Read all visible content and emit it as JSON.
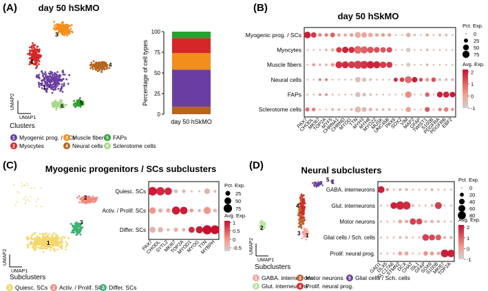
{
  "panels": {
    "A": {
      "letter": "(A)",
      "title": "day 50 hSkMO",
      "umap": {
        "ylabel": "UMAP2",
        "xlabel": "UMAP1",
        "legend_title": "Clusters",
        "cluster_labels": [
          "1",
          "2",
          "3",
          "4",
          "5",
          "6"
        ]
      },
      "legend": [
        {
          "num": "1",
          "label": "Myogenic prog. / SCs",
          "color": "#6a3ea1"
        },
        {
          "num": "2",
          "label": "Myocytes",
          "color": "#d62728"
        },
        {
          "num": "3",
          "label": "Muscle fibers",
          "color": "#f28e1c"
        },
        {
          "num": "4",
          "label": "Neural cells",
          "color": "#b5651d"
        },
        {
          "num": "5",
          "label": "FAPs",
          "color": "#2ca02c"
        },
        {
          "num": "6",
          "label": "Sclerotome cells",
          "color": "#a8d88a"
        }
      ]
    },
    "B": {
      "letter": "(B)",
      "title": "day 50 hSkMO"
    },
    "C": {
      "letter": "(C)",
      "title": "Myogenic progenitors / SCs subclusters",
      "umap": {
        "ylabel": "UMAP2",
        "xlabel": "UMAP1",
        "legend_title": "Subclusters",
        "cluster_labels": [
          "1",
          "2",
          "3"
        ]
      },
      "legend": [
        {
          "num": "1",
          "label": "Quiesc. SCs",
          "color": "#f5d76e"
        },
        {
          "num": "2",
          "label": "Activ. / Prolif. SCs",
          "color": "#f08a7e"
        },
        {
          "num": "3",
          "label": "Differ. SCs",
          "color": "#3cb371"
        }
      ]
    },
    "D": {
      "letter": "(D)",
      "title": "Neural subclusters",
      "umap": {
        "ylabel": "UMAP2",
        "xlabel": "UMAP1",
        "legend_title": "Subclusters",
        "cluster_labels": [
          "1",
          "2",
          "3",
          "4",
          "5"
        ]
      },
      "legend": [
        {
          "num": "1",
          "label": "GABA. interneurons",
          "color": "#f4a6a0"
        },
        {
          "num": "2",
          "label": "Glut. interneurons",
          "color": "#b6e3a0"
        },
        {
          "num": "3",
          "label": "Motor neurons",
          "color": "#c0622b"
        },
        {
          "num": "4",
          "label": "Prolif. neural prog.",
          "color": "#d62728"
        },
        {
          "num": "5",
          "label": "Glial cells / Sch. cells",
          "color": "#6a3ea1"
        }
      ]
    }
  },
  "chart_data": [
    {
      "type": "bar",
      "ylabel": "Percentage of cell types",
      "categories": [
        "day 50 hSkMO"
      ],
      "yticks": [
        0,
        25,
        50,
        75,
        100
      ],
      "ylim": [
        0,
        100
      ],
      "series": [
        {
          "cluster": "Neural cells",
          "color": "#b5651d",
          "values": [
            9
          ]
        },
        {
          "cluster": "Myogenic prog. / SCs",
          "color": "#6a3ea1",
          "values": [
            45
          ]
        },
        {
          "cluster": "Muscle fibers",
          "color": "#f28e1c",
          "values": [
            20
          ]
        },
        {
          "cluster": "Myocytes",
          "color": "#d62728",
          "values": [
            18
          ]
        },
        {
          "cluster": "FAPs",
          "color": "#2ca02c",
          "values": [
            8
          ]
        }
      ]
    },
    {
      "type": "dotplot",
      "rows": [
        "Myogenic prog. / SCs",
        "Myocytes",
        "Muscle fibers",
        "Neural cells",
        "FAPs",
        "Sclerotome cells"
      ],
      "genes": [
        "PAX7",
        "CHODL",
        "MKI67",
        "TOP2A",
        "MYF5",
        "CHRNA1",
        "CHRND",
        "MYOG",
        "TTN",
        "MYH3",
        "MYH8",
        "MYOZ2",
        "MUSK",
        "UNC45B",
        "PAX6",
        "SOX2",
        "VIM",
        "MAP2",
        "GFAP",
        "TWIST1",
        "S100B",
        "PDGFRA",
        "PDGFRB",
        "EBF2"
      ],
      "size_legend": {
        "title": "Pct. Exp.",
        "values": [
          0,
          25,
          50,
          75
        ]
      },
      "color_legend": {
        "title": "Avg. Exp.",
        "ticks": [
          2,
          1,
          0,
          -1
        ],
        "range": [
          -1,
          2.2
        ]
      },
      "pct": [
        [
          65,
          45,
          20,
          20,
          35,
          15,
          15,
          20,
          55,
          45,
          30,
          20,
          20,
          20,
          5,
          5,
          30,
          10,
          5,
          15,
          5,
          10,
          10,
          5
        ],
        [
          5,
          5,
          5,
          10,
          15,
          45,
          60,
          55,
          85,
          75,
          60,
          50,
          45,
          45,
          5,
          5,
          30,
          5,
          5,
          10,
          5,
          5,
          5,
          5
        ],
        [
          5,
          15,
          10,
          10,
          20,
          70,
          70,
          70,
          95,
          90,
          80,
          75,
          60,
          55,
          5,
          5,
          25,
          5,
          5,
          10,
          5,
          5,
          5,
          5
        ],
        [
          5,
          5,
          10,
          10,
          5,
          5,
          5,
          5,
          45,
          25,
          10,
          5,
          5,
          5,
          25,
          30,
          70,
          45,
          20,
          20,
          30,
          10,
          10,
          10
        ],
        [
          5,
          5,
          10,
          10,
          5,
          5,
          5,
          5,
          40,
          20,
          10,
          5,
          5,
          5,
          5,
          5,
          60,
          5,
          5,
          30,
          5,
          50,
          55,
          45
        ],
        [
          25,
          20,
          5,
          5,
          10,
          10,
          5,
          10,
          55,
          35,
          20,
          10,
          10,
          10,
          5,
          5,
          40,
          5,
          5,
          35,
          5,
          20,
          30,
          15
        ]
      ],
      "avg": [
        [
          2,
          1.6,
          0.5,
          0.6,
          1,
          0.2,
          0,
          0.2,
          -0.3,
          0,
          -0.1,
          0,
          0.2,
          0.1,
          -0.5,
          -0.5,
          -0.2,
          -0.5,
          -0.5,
          0,
          -0.5,
          -0.3,
          -0.4,
          -0.5
        ],
        [
          -0.5,
          -0.5,
          -0.4,
          -0.3,
          0,
          1.6,
          1.9,
          1.8,
          0.9,
          1,
          1.2,
          1.3,
          1.2,
          1.3,
          -0.5,
          -0.5,
          -0.8,
          -0.5,
          -0.5,
          -0.4,
          -0.5,
          -0.5,
          -0.5,
          -0.5
        ],
        [
          -0.5,
          0.2,
          -0.3,
          -0.3,
          0.2,
          1.7,
          1.8,
          1.6,
          1.5,
          1.7,
          1.9,
          1.9,
          1.6,
          1.6,
          -0.5,
          -0.5,
          -0.8,
          -0.5,
          -0.5,
          -0.4,
          -0.5,
          -0.5,
          -0.5,
          -0.5
        ],
        [
          -0.5,
          -0.5,
          0.8,
          0.9,
          -0.4,
          -0.5,
          -0.5,
          -0.5,
          -0.6,
          -0.5,
          -0.5,
          -0.5,
          -0.5,
          -0.5,
          1.8,
          1.6,
          0.9,
          2,
          1.4,
          0.3,
          1.3,
          -0.3,
          -0.2,
          -0.2
        ],
        [
          -0.5,
          -0.5,
          0.5,
          0.6,
          -0.5,
          -0.5,
          -0.5,
          -0.5,
          -0.6,
          -0.5,
          -0.5,
          -0.5,
          -0.5,
          -0.5,
          -0.5,
          -0.5,
          0.4,
          -0.5,
          -0.5,
          1,
          -0.5,
          2,
          1.9,
          2.1
        ],
        [
          0.9,
          0.7,
          -0.4,
          -0.4,
          0,
          -0.3,
          -0.5,
          -0.3,
          -0.5,
          -0.4,
          -0.4,
          -0.5,
          -0.4,
          -0.4,
          -0.5,
          -0.5,
          0.1,
          -0.5,
          -0.5,
          1.2,
          -0.5,
          0.5,
          0.6,
          0.3
        ]
      ]
    },
    {
      "type": "dotplot",
      "rows": [
        "Quiesc. SCs",
        "Activ. / Prolif. SCs",
        "Differ. SCs"
      ],
      "genes": [
        "PAX7",
        "CHODL",
        "SYTL2",
        "MKI67",
        "TOP2A",
        "MYOD1",
        "MYOG",
        "TTN",
        "MYBPH"
      ],
      "size_legend": {
        "title": "Pct. Exp.",
        "values": [
          25,
          50,
          75
        ]
      },
      "color_legend": {
        "title": "Avg. Exp.",
        "ticks": [
          1,
          0.5,
          0,
          -0.5
        ],
        "range": [
          -0.7,
          1.1
        ]
      },
      "pct": [
        [
          80,
          75,
          60,
          15,
          15,
          5,
          5,
          35,
          10
        ],
        [
          45,
          20,
          20,
          70,
          60,
          15,
          10,
          55,
          15
        ],
        [
          40,
          30,
          10,
          20,
          15,
          40,
          55,
          90,
          85
        ]
      ],
      "avg": [
        [
          1,
          0.9,
          0.9,
          -0.4,
          -0.4,
          -0.5,
          -0.5,
          -0.3,
          -0.5
        ],
        [
          0,
          -0.3,
          -0.2,
          1,
          1,
          0,
          -0.3,
          0,
          -0.4
        ],
        [
          -0.3,
          -0.3,
          -0.5,
          -0.3,
          -0.4,
          0.9,
          1,
          1.1,
          1.1
        ]
      ]
    },
    {
      "type": "dotplot",
      "rows": [
        "GABA. interneurons",
        "Glut. interneurons",
        "Motor neurons",
        "Glial cells / Sch. cells",
        "Prolif. neural prog."
      ],
      "genes": [
        "GAD1",
        "DLX5",
        "SLC17A6",
        "STMN2",
        "DCX",
        "CHAT",
        "ISL1",
        "GFAP",
        "SOX9",
        "S100B",
        "MKI67",
        "TOP2A"
      ],
      "size_legend": {
        "title": "Pct. Exp.",
        "values": [
          0,
          20,
          40,
          60,
          80
        ]
      },
      "color_legend": {
        "title": "Avg. Exp.",
        "ticks": [
          2,
          1,
          0,
          -1
        ],
        "range": [
          -1,
          2.2
        ]
      },
      "pct": [
        [
          60,
          10,
          5,
          10,
          10,
          5,
          5,
          5,
          10,
          5,
          5,
          5
        ],
        [
          5,
          5,
          55,
          85,
          80,
          10,
          5,
          5,
          10,
          60,
          5,
          5
        ],
        [
          5,
          5,
          5,
          20,
          15,
          50,
          45,
          10,
          15,
          10,
          5,
          5
        ],
        [
          5,
          5,
          5,
          10,
          10,
          5,
          5,
          55,
          45,
          40,
          10,
          10
        ],
        [
          5,
          5,
          5,
          20,
          20,
          5,
          5,
          25,
          20,
          15,
          75,
          70
        ]
      ],
      "avg": [
        [
          2,
          0.5,
          -0.5,
          -0.3,
          -0.3,
          -0.5,
          -0.5,
          -0.5,
          -0.4,
          -0.5,
          -0.5,
          -0.5
        ],
        [
          -0.5,
          -0.5,
          2,
          1.9,
          1.8,
          -0.4,
          -0.5,
          -0.5,
          -0.4,
          1.5,
          -0.5,
          -0.5
        ],
        [
          -0.5,
          -0.5,
          -0.5,
          -0.1,
          0,
          1.5,
          1.4,
          -0.3,
          -0.3,
          -0.3,
          -0.5,
          -0.5
        ],
        [
          -0.5,
          -0.5,
          -0.5,
          -0.5,
          -0.5,
          -0.5,
          -0.5,
          1.5,
          1.4,
          1.1,
          -0.3,
          -0.3
        ],
        [
          -0.5,
          -0.5,
          -0.5,
          0.1,
          0,
          -0.5,
          -0.5,
          0.3,
          0.2,
          0,
          2,
          2
        ]
      ]
    }
  ]
}
